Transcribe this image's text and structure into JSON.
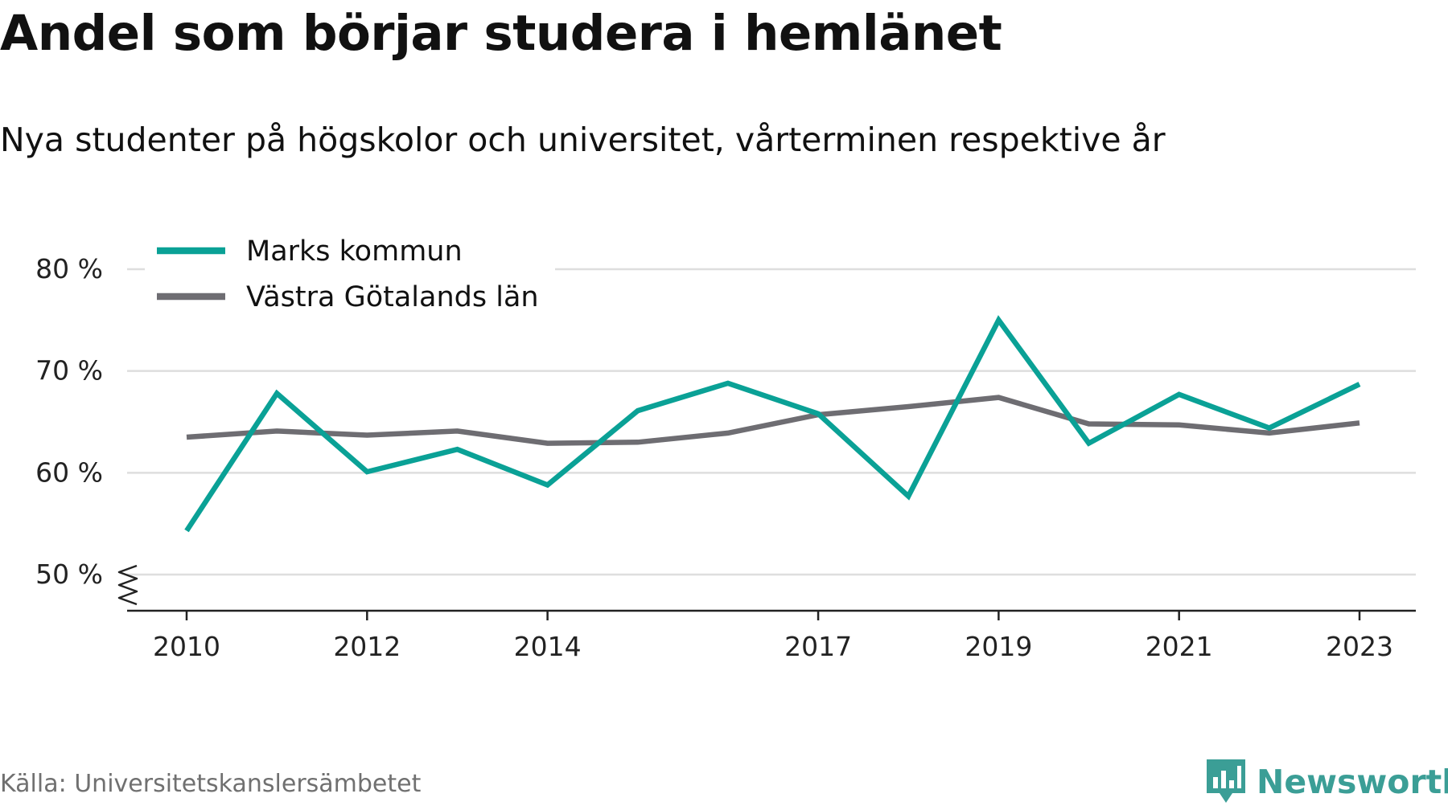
{
  "title": "Andel som börjar studera i hemlänet",
  "subtitle": "Nya studenter på högskolor och universitet, vårterminen respektive år",
  "source": "Källa: Universitetskanslersämbetet",
  "brand": {
    "name": "Newsworthy",
    "logo_icon": "bar-chart-speech-bubble-icon",
    "color": "#3b9e96"
  },
  "chart_data": {
    "type": "line",
    "x": [
      2010,
      2011,
      2012,
      2013,
      2014,
      2015,
      2016,
      2017,
      2018,
      2019,
      2020,
      2021,
      2022,
      2023
    ],
    "x_tick_labels": [
      "2010",
      "2012",
      "2014",
      "2017",
      "2019",
      "2021",
      "2023"
    ],
    "y_ticks": [
      50,
      60,
      70,
      80
    ],
    "y_tick_labels": [
      "50 %",
      "60 %",
      "70 %",
      "80 %"
    ],
    "ylim": [
      50,
      80
    ],
    "y_axis_broken": true,
    "grid": true,
    "legend_position": "top-left",
    "series": [
      {
        "name": "Marks kommun",
        "color": "#0aa196",
        "values": [
          54.3,
          67.8,
          60.1,
          62.3,
          58.8,
          66.1,
          68.8,
          65.8,
          57.7,
          75.0,
          62.9,
          67.7,
          64.4,
          68.7
        ]
      },
      {
        "name": "Västra Götalands län",
        "color": "#6e6d72",
        "values": [
          63.5,
          64.1,
          63.7,
          64.1,
          62.9,
          63.0,
          63.9,
          65.7,
          66.5,
          67.4,
          64.8,
          64.7,
          63.9,
          64.9
        ]
      }
    ]
  }
}
